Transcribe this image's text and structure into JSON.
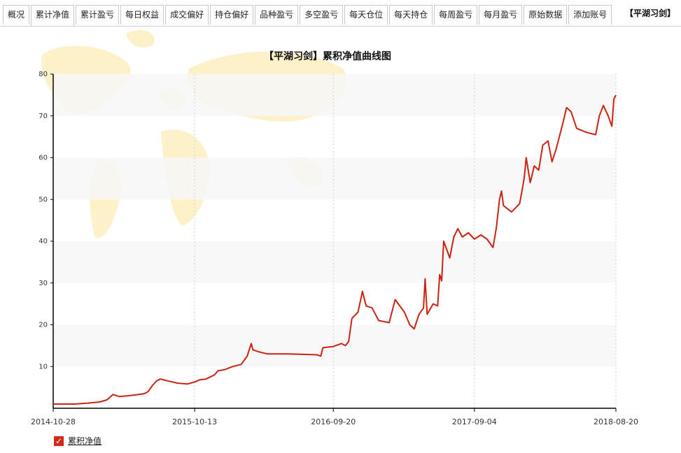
{
  "tabs": [
    {
      "label": "概况"
    },
    {
      "label": "累计净值"
    },
    {
      "label": "累计盈亏"
    },
    {
      "label": "每日权益"
    },
    {
      "label": "成交偏好"
    },
    {
      "label": "持仓偏好"
    },
    {
      "label": "品种盈亏"
    },
    {
      "label": "多空盈亏"
    },
    {
      "label": "每天仓位"
    },
    {
      "label": "每天持仓"
    },
    {
      "label": "每周盈亏"
    },
    {
      "label": "每月盈亏"
    },
    {
      "label": "原始数据"
    },
    {
      "label": "添加账号"
    }
  ],
  "active_tab": 1,
  "account": "【平湖习剑】",
  "legend": {
    "label": "累积净值",
    "checked": true
  },
  "colors": {
    "line": "#cc2211",
    "band": "#f7f7f7",
    "map": "#fdf0c4"
  },
  "chart_data": {
    "type": "line",
    "title": "【平湖习剑】累积净值曲线图",
    "xlabel": "",
    "ylabel": "",
    "ylim": [
      0,
      80
    ],
    "yticks": [
      10,
      20,
      30,
      40,
      50,
      60,
      70,
      80
    ],
    "xticks": [
      "2014-10-28",
      "2015-10-13",
      "2016-09-20",
      "2017-09-04",
      "2018-08-20"
    ],
    "grid": "alternating horizontal bands, dotted vertical lines",
    "background_image": "world map",
    "series": [
      {
        "name": "累积净值",
        "color": "#cc2211",
        "points": [
          [
            "2014-10-28",
            1.0
          ],
          [
            "2014-11-20",
            1.0
          ],
          [
            "2014-12-20",
            1.0
          ],
          [
            "2015-01-20",
            1.2
          ],
          [
            "2015-02-20",
            1.5
          ],
          [
            "2015-03-10",
            2.0
          ],
          [
            "2015-03-25",
            3.3
          ],
          [
            "2015-04-10",
            2.8
          ],
          [
            "2015-05-01",
            3.0
          ],
          [
            "2015-05-20",
            3.2
          ],
          [
            "2015-06-10",
            3.5
          ],
          [
            "2015-06-20",
            4.0
          ],
          [
            "2015-07-01",
            5.5
          ],
          [
            "2015-07-10",
            6.5
          ],
          [
            "2015-07-20",
            7.0
          ],
          [
            "2015-08-10",
            6.5
          ],
          [
            "2015-09-01",
            6.0
          ],
          [
            "2015-09-25",
            5.8
          ],
          [
            "2015-10-13",
            6.3
          ],
          [
            "2015-10-25",
            6.8
          ],
          [
            "2015-11-10",
            7.0
          ],
          [
            "2015-12-01",
            8.0
          ],
          [
            "2015-12-10",
            9.0
          ],
          [
            "2015-12-25",
            9.2
          ],
          [
            "2016-01-15",
            10.0
          ],
          [
            "2016-02-05",
            10.5
          ],
          [
            "2016-02-20",
            12.5
          ],
          [
            "2016-03-01",
            15.5
          ],
          [
            "2016-03-05",
            14.0
          ],
          [
            "2016-03-20",
            13.5
          ],
          [
            "2016-04-10",
            13.0
          ],
          [
            "2016-06-01",
            13.0
          ],
          [
            "2016-08-10",
            12.8
          ],
          [
            "2016-08-20",
            12.5
          ],
          [
            "2016-08-25",
            14.5
          ],
          [
            "2016-09-20",
            14.8
          ],
          [
            "2016-10-10",
            15.5
          ],
          [
            "2016-10-20",
            15.0
          ],
          [
            "2016-10-28",
            16.0
          ],
          [
            "2016-11-05",
            21.5
          ],
          [
            "2016-11-20",
            23.0
          ],
          [
            "2016-12-01",
            28.0
          ],
          [
            "2016-12-10",
            24.5
          ],
          [
            "2016-12-25",
            24.0
          ],
          [
            "2017-01-10",
            21.0
          ],
          [
            "2017-02-05",
            20.5
          ],
          [
            "2017-02-20",
            26.0
          ],
          [
            "2017-03-15",
            23.0
          ],
          [
            "2017-03-28",
            20.0
          ],
          [
            "2017-04-08",
            19.0
          ],
          [
            "2017-04-20",
            22.5
          ],
          [
            "2017-05-01",
            24.0
          ],
          [
            "2017-05-05",
            31.0
          ],
          [
            "2017-05-10",
            22.5
          ],
          [
            "2017-05-25",
            25.0
          ],
          [
            "2017-06-05",
            24.5
          ],
          [
            "2017-06-10",
            32.0
          ],
          [
            "2017-06-15",
            30.5
          ],
          [
            "2017-06-20",
            40.0
          ],
          [
            "2017-07-05",
            36.0
          ],
          [
            "2017-07-15",
            41.0
          ],
          [
            "2017-07-25",
            43.0
          ],
          [
            "2017-08-05",
            41.0
          ],
          [
            "2017-08-20",
            42.0
          ],
          [
            "2017-09-04",
            40.5
          ],
          [
            "2017-09-20",
            41.5
          ],
          [
            "2017-10-05",
            40.5
          ],
          [
            "2017-10-20",
            38.5
          ],
          [
            "2017-10-28",
            43.0
          ],
          [
            "2017-11-05",
            50.0
          ],
          [
            "2017-11-10",
            52.0
          ],
          [
            "2017-11-15",
            48.5
          ],
          [
            "2017-12-05",
            47.0
          ],
          [
            "2017-12-25",
            49.0
          ],
          [
            "2018-01-05",
            55.0
          ],
          [
            "2018-01-10",
            60.0
          ],
          [
            "2018-01-20",
            54.0
          ],
          [
            "2018-01-30",
            58.0
          ],
          [
            "2018-02-10",
            57.0
          ],
          [
            "2018-02-20",
            63.0
          ],
          [
            "2018-03-05",
            64.0
          ],
          [
            "2018-03-15",
            59.0
          ],
          [
            "2018-03-25",
            62.0
          ],
          [
            "2018-04-10",
            68.0
          ],
          [
            "2018-04-20",
            72.0
          ],
          [
            "2018-05-01",
            71.0
          ],
          [
            "2018-05-15",
            67.0
          ],
          [
            "2018-06-10",
            66.0
          ],
          [
            "2018-07-01",
            65.5
          ],
          [
            "2018-07-10",
            70.0
          ],
          [
            "2018-07-20",
            72.5
          ],
          [
            "2018-08-01",
            70.0
          ],
          [
            "2018-08-10",
            67.5
          ],
          [
            "2018-08-15",
            74.0
          ],
          [
            "2018-08-20",
            75.0
          ]
        ]
      }
    ]
  }
}
